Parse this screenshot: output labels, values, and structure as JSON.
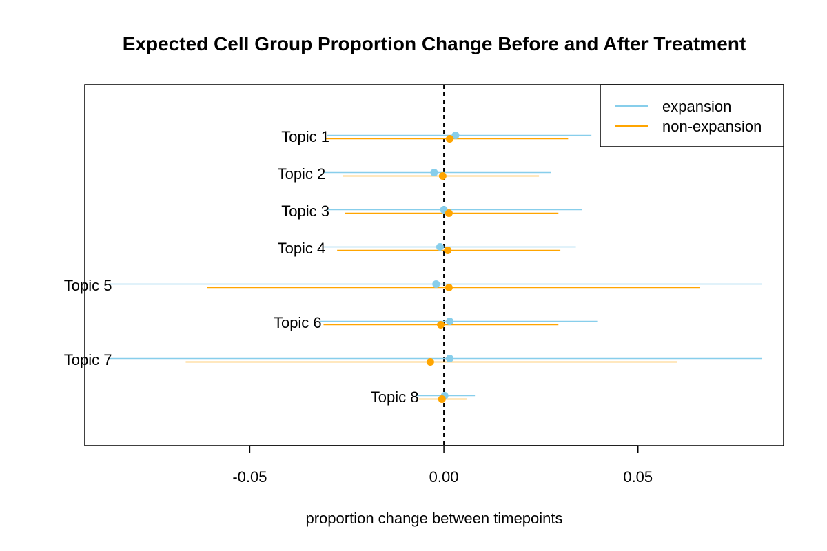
{
  "chart_data": {
    "type": "forest",
    "title": "Expected Cell Group Proportion Change Before and After Treatment",
    "xlabel": "proportion change between timepoints",
    "xlim": [
      -0.0925,
      0.0875
    ],
    "xticks": [
      -0.05,
      0.0,
      0.05
    ],
    "xtick_labels": [
      "-0.05",
      "0.00",
      "0.05"
    ],
    "reference_line": 0,
    "legend": {
      "position": "top-right",
      "entries": [
        "expansion",
        "non-expansion"
      ]
    },
    "series": [
      {
        "name": "expansion",
        "color": "#87CEEB",
        "points": [
          {
            "topic": "Topic 1",
            "est": 0.003,
            "lo": -0.03,
            "hi": 0.038
          },
          {
            "topic": "Topic 2",
            "est": -0.0025,
            "lo": -0.031,
            "hi": 0.0275
          },
          {
            "topic": "Topic 3",
            "est": 0.0,
            "lo": -0.03,
            "hi": 0.0355
          },
          {
            "topic": "Topic 4",
            "est": -0.001,
            "lo": -0.031,
            "hi": 0.034
          },
          {
            "topic": "Topic 5",
            "est": -0.002,
            "lo": -0.086,
            "hi": 0.082
          },
          {
            "topic": "Topic 6",
            "est": 0.0015,
            "lo": -0.032,
            "hi": 0.0395
          },
          {
            "topic": "Topic 7",
            "est": 0.0015,
            "lo": -0.086,
            "hi": 0.082
          },
          {
            "topic": "Topic 8",
            "est": 0.0002,
            "lo": -0.007,
            "hi": 0.008
          }
        ]
      },
      {
        "name": "non-expansion",
        "color": "#FFA500",
        "points": [
          {
            "topic": "Topic 1",
            "est": 0.0015,
            "lo": -0.0305,
            "hi": 0.032
          },
          {
            "topic": "Topic 2",
            "est": -0.0003,
            "lo": -0.026,
            "hi": 0.0245
          },
          {
            "topic": "Topic 3",
            "est": 0.0013,
            "lo": -0.0255,
            "hi": 0.0295
          },
          {
            "topic": "Topic 4",
            "est": 0.001,
            "lo": -0.0275,
            "hi": 0.03
          },
          {
            "topic": "Topic 5",
            "est": 0.0013,
            "lo": -0.061,
            "hi": 0.066
          },
          {
            "topic": "Topic 6",
            "est": -0.0008,
            "lo": -0.031,
            "hi": 0.0295
          },
          {
            "topic": "Topic 7",
            "est": -0.0035,
            "lo": -0.0665,
            "hi": 0.06
          },
          {
            "topic": "Topic 8",
            "est": -0.0005,
            "lo": -0.0065,
            "hi": 0.006
          }
        ]
      }
    ]
  }
}
